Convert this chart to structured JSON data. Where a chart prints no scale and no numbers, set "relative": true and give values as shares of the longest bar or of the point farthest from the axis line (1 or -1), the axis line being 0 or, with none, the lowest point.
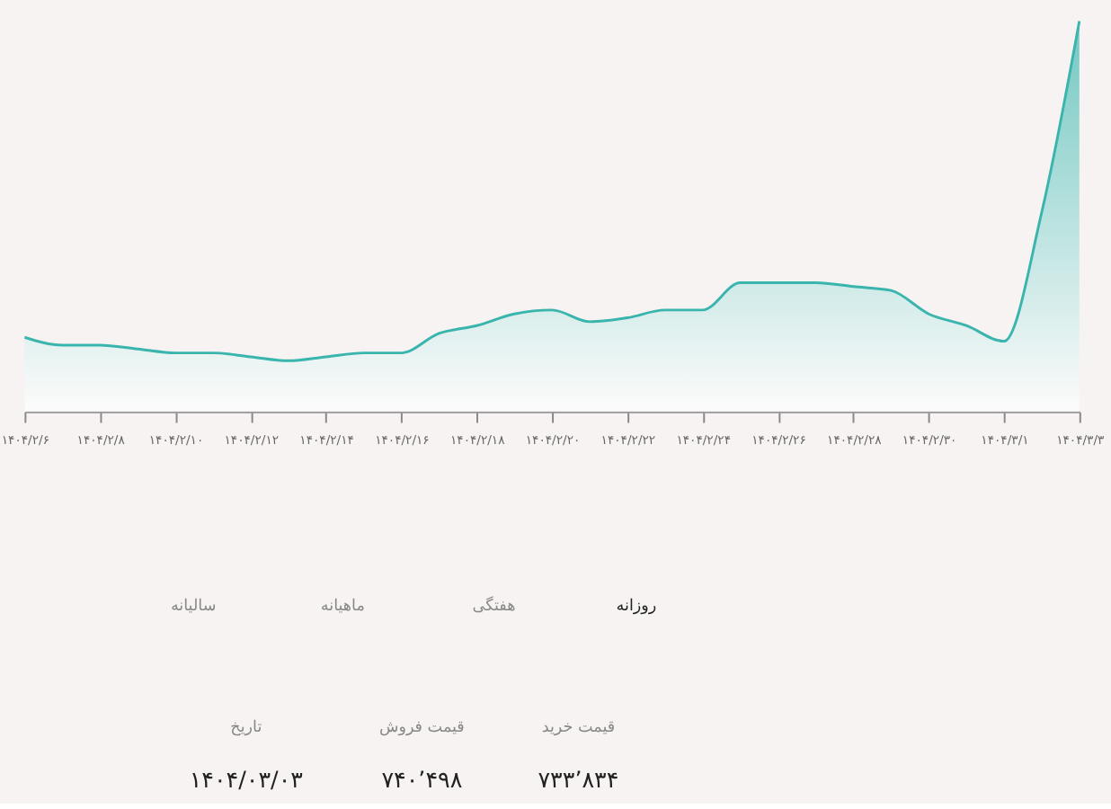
{
  "chart_data": {
    "type": "area",
    "relative": true,
    "categories": [
      "۱۴۰۴/۲/۶",
      null,
      "۱۴۰۴/۲/۸",
      null,
      "۱۴۰۴/۲/۱۰",
      null,
      "۱۴۰۴/۲/۱۲",
      null,
      "۱۴۰۴/۲/۱۴",
      null,
      "۱۴۰۴/۲/۱۶",
      null,
      "۱۴۰۴/۲/۱۸",
      null,
      "۱۴۰۴/۲/۲۰",
      null,
      "۱۴۰۴/۲/۲۲",
      null,
      "۱۴۰۴/۲/۲۴",
      null,
      "۱۴۰۴/۲/۲۶",
      null,
      "۱۴۰۴/۲/۲۸",
      null,
      "۱۴۰۴/۲/۳۰",
      null,
      "۱۴۰۴/۳/۱",
      null,
      "۱۴۰۴/۳/۳"
    ],
    "series": [
      {
        "color": "#3ab5ad",
        "values": [
          0.19,
          0.17,
          0.17,
          0.16,
          0.15,
          0.15,
          0.14,
          0.13,
          0.14,
          0.15,
          0.15,
          0.2,
          0.22,
          0.25,
          0.26,
          0.23,
          0.24,
          0.26,
          0.26,
          0.33,
          0.33,
          0.33,
          0.32,
          0.31,
          0.25,
          0.22,
          0.18,
          0.51,
          1
        ]
      }
    ],
    "grid": false,
    "tick_labels": "x",
    "annotations": [
      "روزانه",
      "هفتگی",
      "ماهیانه",
      "سالیانه",
      "قیمت خرید",
      "قیمت فروش",
      "تاریخ",
      "۷۳۳٬۸۳۴",
      "۷۴۰٬۴۹۸",
      "۱۴۰۴/۰۳/۰۳"
    ]
  }
}
